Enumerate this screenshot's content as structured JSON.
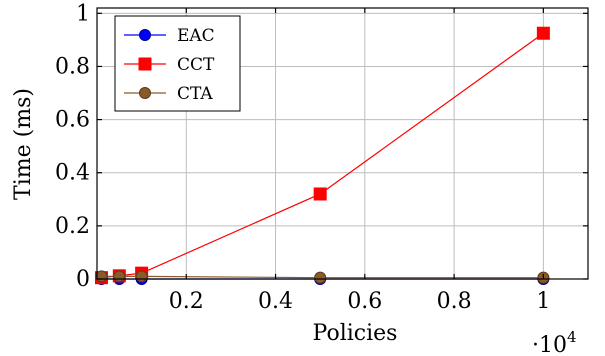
{
  "chart_data": {
    "type": "line",
    "xlabel": "Policies",
    "ylabel": "Time (ms)",
    "x_multiplier_label": "·10",
    "x_multiplier_exponent": "4",
    "xlim": [
      0,
      1100
    ],
    "ylim": [
      0,
      1.02
    ],
    "x_ticks": [
      {
        "value": 200,
        "label": "0.2"
      },
      {
        "value": 400,
        "label": "0.4"
      },
      {
        "value": 600,
        "label": "0.6"
      },
      {
        "value": 800,
        "label": "0.8"
      },
      {
        "value": 1000,
        "label": "1"
      }
    ],
    "y_ticks": [
      {
        "value": 0,
        "label": "0"
      },
      {
        "value": 0.2,
        "label": "0.2"
      },
      {
        "value": 0.4,
        "label": "0.4"
      },
      {
        "value": 0.6,
        "label": "0.6"
      },
      {
        "value": 0.8,
        "label": "0.8"
      },
      {
        "value": 1.0,
        "label": "1"
      }
    ],
    "grid": true,
    "legend_position": "top-left",
    "x": [
      10,
      50,
      100,
      500,
      1000
    ],
    "series": [
      {
        "name": "EAC",
        "values": [
          0.0,
          0.0,
          0.0,
          0.0,
          0.0
        ],
        "color": "#0000ff",
        "marker": "circle"
      },
      {
        "name": "CCT",
        "values": [
          0.005,
          0.012,
          0.022,
          0.32,
          0.925
        ],
        "color": "#ff0000",
        "marker": "square"
      },
      {
        "name": "CTA",
        "values": [
          0.01,
          0.01,
          0.01,
          0.005,
          0.005
        ],
        "color": "#8b5a2b",
        "marker": "circle"
      }
    ]
  }
}
